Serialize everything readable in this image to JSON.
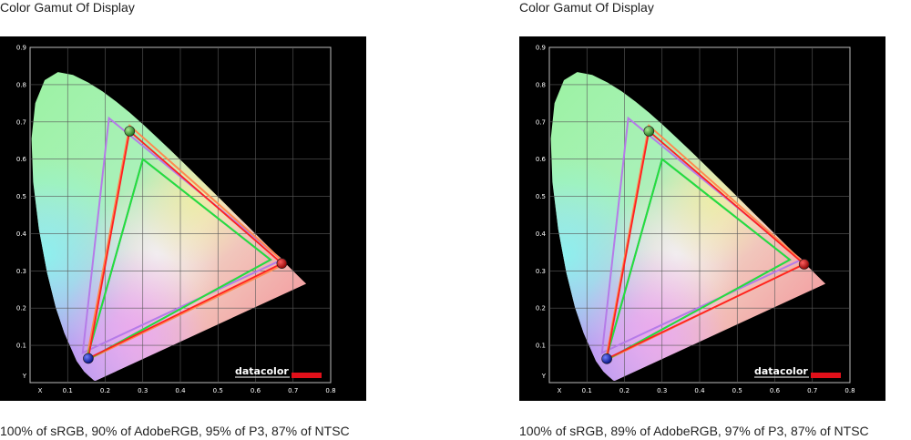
{
  "chart_data": [
    {
      "type": "scatter",
      "title": "Color Gamut Of Display",
      "caption": "100% of sRGB, 90% of AdobeRGB, 95% of P3, 87% of NTSC",
      "xlabel": "X",
      "ylabel": "Y",
      "xlim": [
        0,
        0.8
      ],
      "ylim": [
        0,
        0.9
      ],
      "x_ticks": [
        "0.1",
        "0.2",
        "0.3",
        "0.4",
        "0.5",
        "0.6",
        "0.7",
        "0.8"
      ],
      "y_ticks": [
        "0.1",
        "0.2",
        "0.3",
        "0.4",
        "0.5",
        "0.6",
        "0.7",
        "0.8",
        "0.9"
      ],
      "grid": true,
      "brand": "datacolor",
      "display_primaries": {
        "red": [
          0.67,
          0.32
        ],
        "green": [
          0.265,
          0.675
        ],
        "blue": [
          0.155,
          0.065
        ]
      },
      "reference_gamuts": [
        {
          "color": "#4f6fe0",
          "points": [
            [
              0.64,
              0.33
            ],
            [
              0.3,
              0.6
            ],
            [
              0.15,
              0.06
            ]
          ]
        },
        {
          "color": "#b57be8",
          "points": [
            [
              0.67,
              0.33
            ],
            [
              0.21,
              0.71
            ],
            [
              0.14,
              0.08
            ]
          ]
        },
        {
          "color": "#ff8a50",
          "points": [
            [
              0.68,
              0.32
            ],
            [
              0.265,
              0.69
            ],
            [
              0.15,
              0.06
            ]
          ]
        },
        {
          "color": "#25e03a",
          "points": [
            [
              0.64,
              0.33
            ],
            [
              0.3,
              0.6
            ],
            [
              0.15,
              0.06
            ]
          ]
        }
      ]
    },
    {
      "type": "scatter",
      "title": "Color Gamut Of Display",
      "caption": "100% of sRGB, 89% of AdobeRGB, 97% of P3, 87% of NTSC",
      "xlabel": "X",
      "ylabel": "Y",
      "xlim": [
        0,
        0.8
      ],
      "ylim": [
        0,
        0.9
      ],
      "x_ticks": [
        "0.1",
        "0.2",
        "0.3",
        "0.4",
        "0.5",
        "0.6",
        "0.7",
        "0.8"
      ],
      "y_ticks": [
        "0.1",
        "0.2",
        "0.3",
        "0.4",
        "0.5",
        "0.6",
        "0.7",
        "0.8",
        "0.9"
      ],
      "grid": true,
      "brand": "datacolor",
      "display_primaries": {
        "red": [
          0.678,
          0.318
        ],
        "green": [
          0.265,
          0.675
        ],
        "blue": [
          0.153,
          0.064
        ]
      },
      "reference_gamuts": [
        {
          "color": "#4f6fe0",
          "points": [
            [
              0.64,
              0.33
            ],
            [
              0.3,
              0.6
            ],
            [
              0.15,
              0.06
            ]
          ]
        },
        {
          "color": "#b57be8",
          "points": [
            [
              0.67,
              0.33
            ],
            [
              0.21,
              0.71
            ],
            [
              0.14,
              0.08
            ]
          ]
        },
        {
          "color": "#ff8a50",
          "points": [
            [
              0.68,
              0.32
            ],
            [
              0.265,
              0.69
            ],
            [
              0.15,
              0.06
            ]
          ]
        },
        {
          "color": "#25e03a",
          "points": [
            [
              0.64,
              0.33
            ],
            [
              0.3,
              0.6
            ],
            [
              0.15,
              0.06
            ]
          ]
        }
      ]
    }
  ],
  "style": {
    "plot_background": "#000000",
    "grid_color": "#5a5a5a",
    "display_gamut_color": "#ff2020",
    "brand_bar_color": "#e0101a"
  }
}
